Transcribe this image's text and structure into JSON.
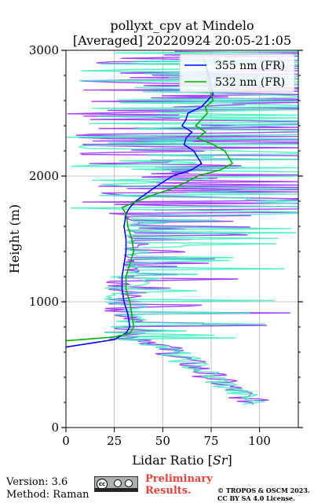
{
  "chart_data": {
    "type": "line",
    "title": "pollyxt_cpv at Mindelo",
    "subtitle": "[Averaged] 20220924 20:05-21:05",
    "xlabel": "Lidar Ratio [$Sr$]",
    "xlabel_main": "Lidar Ratio [",
    "xlabel_unit": "Sr",
    "xlabel_close": "]",
    "ylabel": "Height (m)",
    "xlim": [
      0,
      120
    ],
    "ylim": [
      0,
      3000
    ],
    "xticks": [
      "0",
      "25",
      "50",
      "75",
      "100"
    ],
    "yticks": [
      "0",
      "1000",
      "2000",
      "3000"
    ],
    "grid": true,
    "legend_position": "top-right",
    "series": [
      {
        "name": "355 nm (FR)",
        "color": "#0000ff",
        "y": [
          640,
          700,
          750,
          800,
          900,
          1000,
          1100,
          1200,
          1300,
          1400,
          1500,
          1600,
          1700,
          1750,
          1800,
          1900,
          1950,
          2000,
          2050,
          2100,
          2150,
          2200,
          2250,
          2300,
          2350,
          2400,
          2450,
          2500,
          2550,
          2600,
          2650,
          2700,
          2800,
          2900,
          2950
        ],
        "values": [
          0,
          25,
          31,
          33,
          32,
          30,
          29,
          29,
          30,
          31,
          31,
          30,
          31,
          33,
          36,
          45,
          50,
          55,
          65,
          70,
          68,
          66,
          61,
          62,
          65,
          60,
          62,
          63,
          70,
          73,
          76,
          75,
          74,
          72,
          71
        ]
      },
      {
        "name": "532 nm (FR)",
        "color": "#00b000",
        "y": [
          690,
          720,
          750,
          800,
          900,
          1000,
          1050,
          1100,
          1200,
          1300,
          1400,
          1500,
          1600,
          1700,
          1750,
          1800,
          1850,
          1900,
          1950,
          2000,
          2050,
          2100,
          2150,
          2200,
          2250,
          2300,
          2350,
          2400,
          2450,
          2500,
          2550,
          2600,
          2650,
          2700,
          2800,
          2900,
          2950
        ],
        "values": [
          0,
          25,
          33,
          35,
          34,
          33,
          32,
          31,
          31,
          33,
          35,
          34,
          32,
          31,
          29,
          37,
          45,
          55,
          62,
          68,
          80,
          86,
          84,
          82,
          76,
          68,
          72,
          67,
          70,
          73,
          72,
          76,
          75,
          74,
          73,
          72,
          71
        ]
      }
    ]
  },
  "footer": {
    "version": "Version: 3.6",
    "method": "Method: Raman",
    "preliminary_line1": "Preliminary",
    "preliminary_line2": "Results.",
    "copyright": "© TROPOS & OSCM 2023.",
    "license": "CC BY SA 4.0 License.",
    "badge_text": "cc"
  }
}
